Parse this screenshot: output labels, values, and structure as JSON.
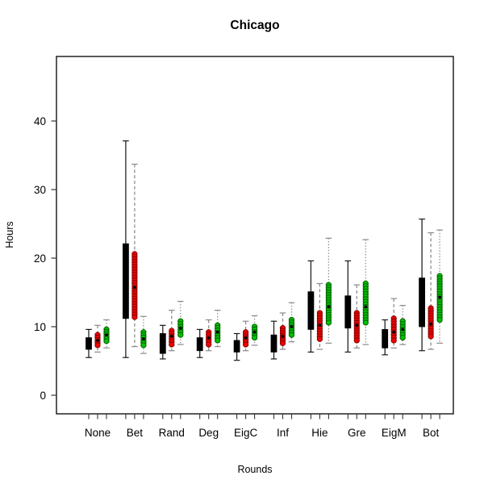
{
  "chart_data": {
    "type": "boxplot",
    "title": "Chicago",
    "xlabel": "Rounds",
    "ylabel": "Hours",
    "categories": [
      "None",
      "Bet",
      "Rand",
      "Deg",
      "EigC",
      "Inf",
      "Hie",
      "Gre",
      "EigM",
      "Bot"
    ],
    "y_ticks": [
      0,
      10,
      20,
      30,
      40
    ],
    "ylim": [
      -2.7,
      49.4
    ],
    "grid": false,
    "legend": "none",
    "box_format": [
      "whisker_low",
      "q1",
      "median",
      "q3",
      "whisker_high"
    ],
    "series": [
      {
        "name": "black",
        "box_glyph": "solid-rect",
        "color": "#000000",
        "edge_color": "#000000",
        "whisker_color": "#1a1a1a",
        "whisker_style": "solid",
        "boxes": [
          [
            5.5,
            6.7,
            7.6,
            8.4,
            9.6
          ],
          [
            5.5,
            11.2,
            14.0,
            22.1,
            37.1
          ],
          [
            5.3,
            6.1,
            7.5,
            9.0,
            10.2
          ],
          [
            5.5,
            6.5,
            7.4,
            8.4,
            9.6
          ],
          [
            5.1,
            6.3,
            7.2,
            8.0,
            9.0
          ],
          [
            5.3,
            6.3,
            7.5,
            8.8,
            10.8
          ],
          [
            6.3,
            9.6,
            11.5,
            15.1,
            19.6
          ],
          [
            6.3,
            9.8,
            11.5,
            14.5,
            19.6
          ],
          [
            5.9,
            6.9,
            8.2,
            9.6,
            11.0
          ],
          [
            6.5,
            10.0,
            12.5,
            17.1,
            25.7
          ]
        ]
      },
      {
        "name": "red",
        "box_glyph": "point-column",
        "color": "#f40000",
        "edge_color": "#8b0000",
        "whisker_color": "#8a8a8a",
        "whisker_style": "dashed",
        "median_dot_color": "#000000",
        "boxes": [
          [
            6.3,
            7.3,
            8.0,
            8.8,
            10.2
          ],
          [
            7.1,
            11.4,
            15.7,
            20.6,
            33.7
          ],
          [
            6.5,
            7.4,
            8.6,
            9.4,
            12.4
          ],
          [
            6.5,
            7.4,
            8.4,
            9.2,
            11.0
          ],
          [
            6.5,
            7.4,
            8.4,
            9.2,
            10.8
          ],
          [
            6.7,
            7.6,
            8.6,
            9.8,
            12.0
          ],
          [
            6.7,
            8.2,
            10.2,
            12.0,
            16.3
          ],
          [
            6.9,
            8.0,
            10.2,
            12.0,
            16.1
          ],
          [
            6.9,
            8.0,
            9.2,
            11.2,
            14.1
          ],
          [
            6.7,
            8.6,
            10.4,
            12.7,
            23.7
          ]
        ]
      },
      {
        "name": "green",
        "box_glyph": "point-column",
        "color": "#00c300",
        "edge_color": "#006400",
        "whisker_color": "#8a8a8a",
        "whisker_style": "dotted",
        "median_dot_color": "#000000",
        "boxes": [
          [
            6.9,
            7.9,
            8.8,
            9.6,
            11.0
          ],
          [
            6.1,
            7.3,
            8.2,
            9.2,
            11.5
          ],
          [
            7.4,
            8.8,
            9.8,
            10.8,
            13.7
          ],
          [
            7.1,
            8.0,
            9.2,
            10.2,
            12.4
          ],
          [
            7.3,
            8.4,
            9.2,
            10.0,
            11.6
          ],
          [
            7.8,
            8.8,
            10.0,
            11.0,
            13.5
          ],
          [
            7.6,
            10.6,
            12.9,
            16.1,
            22.9
          ],
          [
            7.4,
            10.6,
            12.9,
            16.3,
            22.7
          ],
          [
            7.4,
            8.4,
            9.6,
            10.8,
            13.1
          ],
          [
            7.6,
            11.0,
            14.3,
            17.4,
            24.1
          ]
        ]
      }
    ]
  }
}
